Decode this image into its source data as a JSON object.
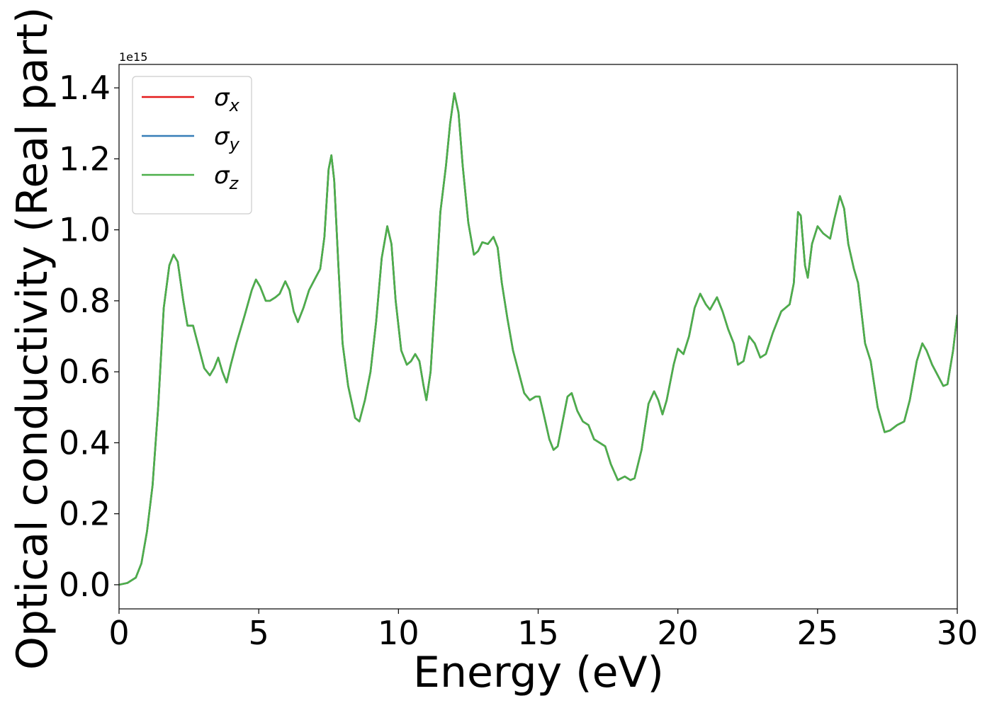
{
  "chart_data": {
    "type": "line",
    "xlabel": "Energy (eV)",
    "ylabel": "Optical conductivity (Real part)",
    "offset_text": "1e15",
    "xlim": [
      0,
      30
    ],
    "xticks": [
      0,
      5,
      10,
      15,
      20,
      25,
      30
    ],
    "ylim": [
      -0.068,
      1.466
    ],
    "yticks": [
      {
        "value": 0,
        "label": "0.0"
      },
      0.2,
      0.4,
      0.6,
      0.8,
      {
        "value": 1,
        "label": "1.0"
      },
      1.2,
      1.4
    ],
    "legend": "upper left",
    "x": [
      0,
      0.3,
      0.6,
      0.8,
      1.0,
      1.2,
      1.4,
      1.6,
      1.8,
      1.95,
      2.1,
      2.3,
      2.45,
      2.65,
      2.85,
      3.05,
      3.25,
      3.4,
      3.55,
      3.7,
      3.85,
      4.0,
      4.2,
      4.5,
      4.75,
      4.9,
      5.05,
      5.25,
      5.4,
      5.6,
      5.75,
      5.95,
      6.1,
      6.25,
      6.4,
      6.6,
      6.8,
      7.0,
      7.2,
      7.35,
      7.5,
      7.6,
      7.7,
      7.85,
      8.0,
      8.2,
      8.45,
      8.6,
      8.8,
      9.0,
      9.2,
      9.4,
      9.6,
      9.75,
      9.9,
      10.1,
      10.3,
      10.45,
      10.6,
      10.75,
      10.9,
      11.0,
      11.15,
      11.35,
      11.5,
      11.7,
      11.85,
      12.0,
      12.15,
      12.3,
      12.5,
      12.7,
      12.85,
      13.0,
      13.2,
      13.4,
      13.55,
      13.7,
      13.9,
      14.1,
      14.3,
      14.5,
      14.7,
      14.9,
      15.05,
      15.2,
      15.4,
      15.55,
      15.7,
      15.9,
      16.05,
      16.2,
      16.4,
      16.6,
      16.8,
      17.0,
      17.2,
      17.4,
      17.6,
      17.85,
      18.1,
      18.3,
      18.45,
      18.7,
      18.95,
      19.15,
      19.3,
      19.45,
      19.6,
      19.85,
      20.0,
      20.2,
      20.4,
      20.6,
      20.8,
      21.0,
      21.15,
      21.4,
      21.6,
      21.8,
      22.0,
      22.15,
      22.35,
      22.55,
      22.75,
      22.95,
      23.15,
      23.4,
      23.7,
      24.0,
      24.15,
      24.3,
      24.4,
      24.55,
      24.65,
      24.8,
      25.0,
      25.2,
      25.45,
      25.6,
      25.8,
      25.95,
      26.1,
      26.3,
      26.45,
      26.7,
      26.9,
      27.15,
      27.4,
      27.6,
      27.85,
      28.1,
      28.3,
      28.55,
      28.75,
      28.9,
      29.1,
      29.3,
      29.5,
      29.65,
      29.85,
      30.0
    ],
    "series": [
      {
        "name": "σx",
        "color": "#e41a1c",
        "values": [
          0.0,
          0.005,
          0.02,
          0.06,
          0.15,
          0.28,
          0.5,
          0.78,
          0.9,
          0.93,
          0.91,
          0.8,
          0.73,
          0.73,
          0.67,
          0.61,
          0.59,
          0.61,
          0.64,
          0.6,
          0.57,
          0.62,
          0.68,
          0.76,
          0.83,
          0.86,
          0.84,
          0.8,
          0.8,
          0.81,
          0.82,
          0.855,
          0.83,
          0.77,
          0.74,
          0.78,
          0.83,
          0.86,
          0.89,
          0.98,
          1.17,
          1.21,
          1.14,
          0.9,
          0.68,
          0.56,
          0.47,
          0.46,
          0.52,
          0.6,
          0.74,
          0.92,
          1.01,
          0.96,
          0.8,
          0.66,
          0.62,
          0.63,
          0.65,
          0.63,
          0.56,
          0.52,
          0.6,
          0.85,
          1.05,
          1.18,
          1.3,
          1.385,
          1.33,
          1.18,
          1.02,
          0.93,
          0.94,
          0.965,
          0.96,
          0.98,
          0.95,
          0.85,
          0.75,
          0.66,
          0.6,
          0.54,
          0.52,
          0.53,
          0.53,
          0.48,
          0.41,
          0.38,
          0.39,
          0.47,
          0.53,
          0.54,
          0.49,
          0.46,
          0.45,
          0.41,
          0.4,
          0.39,
          0.34,
          0.295,
          0.305,
          0.295,
          0.3,
          0.38,
          0.51,
          0.545,
          0.52,
          0.48,
          0.52,
          0.62,
          0.665,
          0.65,
          0.7,
          0.78,
          0.82,
          0.79,
          0.775,
          0.81,
          0.77,
          0.72,
          0.68,
          0.62,
          0.63,
          0.7,
          0.68,
          0.64,
          0.65,
          0.71,
          0.77,
          0.79,
          0.85,
          1.05,
          1.04,
          0.9,
          0.865,
          0.96,
          1.01,
          0.99,
          0.975,
          1.03,
          1.095,
          1.06,
          0.96,
          0.89,
          0.85,
          0.68,
          0.63,
          0.5,
          0.43,
          0.435,
          0.45,
          0.46,
          0.52,
          0.63,
          0.68,
          0.66,
          0.62,
          0.59,
          0.56,
          0.565,
          0.66,
          0.76
        ]
      },
      {
        "name": "σy",
        "color": "#377eb8",
        "values": [
          0.0,
          0.005,
          0.02,
          0.06,
          0.15,
          0.28,
          0.5,
          0.78,
          0.9,
          0.93,
          0.91,
          0.8,
          0.73,
          0.73,
          0.67,
          0.61,
          0.59,
          0.61,
          0.64,
          0.6,
          0.57,
          0.62,
          0.68,
          0.76,
          0.83,
          0.86,
          0.84,
          0.8,
          0.8,
          0.81,
          0.82,
          0.855,
          0.83,
          0.77,
          0.74,
          0.78,
          0.83,
          0.86,
          0.89,
          0.98,
          1.17,
          1.21,
          1.14,
          0.9,
          0.68,
          0.56,
          0.47,
          0.46,
          0.52,
          0.6,
          0.74,
          0.92,
          1.01,
          0.96,
          0.8,
          0.66,
          0.62,
          0.63,
          0.65,
          0.63,
          0.56,
          0.52,
          0.6,
          0.85,
          1.05,
          1.18,
          1.3,
          1.385,
          1.33,
          1.18,
          1.02,
          0.93,
          0.94,
          0.965,
          0.96,
          0.98,
          0.95,
          0.85,
          0.75,
          0.66,
          0.6,
          0.54,
          0.52,
          0.53,
          0.53,
          0.48,
          0.41,
          0.38,
          0.39,
          0.47,
          0.53,
          0.54,
          0.49,
          0.46,
          0.45,
          0.41,
          0.4,
          0.39,
          0.34,
          0.295,
          0.305,
          0.295,
          0.3,
          0.38,
          0.51,
          0.545,
          0.52,
          0.48,
          0.52,
          0.62,
          0.665,
          0.65,
          0.7,
          0.78,
          0.82,
          0.79,
          0.775,
          0.81,
          0.77,
          0.72,
          0.68,
          0.62,
          0.63,
          0.7,
          0.68,
          0.64,
          0.65,
          0.71,
          0.77,
          0.79,
          0.85,
          1.05,
          1.04,
          0.9,
          0.865,
          0.96,
          1.01,
          0.99,
          0.975,
          1.03,
          1.095,
          1.06,
          0.96,
          0.89,
          0.85,
          0.68,
          0.63,
          0.5,
          0.43,
          0.435,
          0.45,
          0.46,
          0.52,
          0.63,
          0.68,
          0.66,
          0.62,
          0.59,
          0.56,
          0.565,
          0.66,
          0.76
        ]
      },
      {
        "name": "σz",
        "color": "#4daf4a",
        "values": [
          0.0,
          0.005,
          0.02,
          0.06,
          0.15,
          0.28,
          0.5,
          0.78,
          0.9,
          0.93,
          0.91,
          0.8,
          0.73,
          0.73,
          0.67,
          0.61,
          0.59,
          0.61,
          0.64,
          0.6,
          0.57,
          0.62,
          0.68,
          0.76,
          0.83,
          0.86,
          0.84,
          0.8,
          0.8,
          0.81,
          0.82,
          0.855,
          0.83,
          0.77,
          0.74,
          0.78,
          0.83,
          0.86,
          0.89,
          0.98,
          1.17,
          1.21,
          1.14,
          0.9,
          0.68,
          0.56,
          0.47,
          0.46,
          0.52,
          0.6,
          0.74,
          0.92,
          1.01,
          0.96,
          0.8,
          0.66,
          0.62,
          0.63,
          0.65,
          0.63,
          0.56,
          0.52,
          0.6,
          0.85,
          1.05,
          1.18,
          1.3,
          1.385,
          1.33,
          1.18,
          1.02,
          0.93,
          0.94,
          0.965,
          0.96,
          0.98,
          0.95,
          0.85,
          0.75,
          0.66,
          0.6,
          0.54,
          0.52,
          0.53,
          0.53,
          0.48,
          0.41,
          0.38,
          0.39,
          0.47,
          0.53,
          0.54,
          0.49,
          0.46,
          0.45,
          0.41,
          0.4,
          0.39,
          0.34,
          0.295,
          0.305,
          0.295,
          0.3,
          0.38,
          0.51,
          0.545,
          0.52,
          0.48,
          0.52,
          0.62,
          0.665,
          0.65,
          0.7,
          0.78,
          0.82,
          0.79,
          0.775,
          0.81,
          0.77,
          0.72,
          0.68,
          0.62,
          0.63,
          0.7,
          0.68,
          0.64,
          0.65,
          0.71,
          0.77,
          0.79,
          0.85,
          1.05,
          1.04,
          0.9,
          0.865,
          0.96,
          1.01,
          0.99,
          0.975,
          1.03,
          1.095,
          1.06,
          0.96,
          0.89,
          0.85,
          0.68,
          0.63,
          0.5,
          0.43,
          0.435,
          0.45,
          0.46,
          0.52,
          0.63,
          0.68,
          0.66,
          0.62,
          0.59,
          0.56,
          0.565,
          0.66,
          0.76
        ]
      }
    ]
  }
}
